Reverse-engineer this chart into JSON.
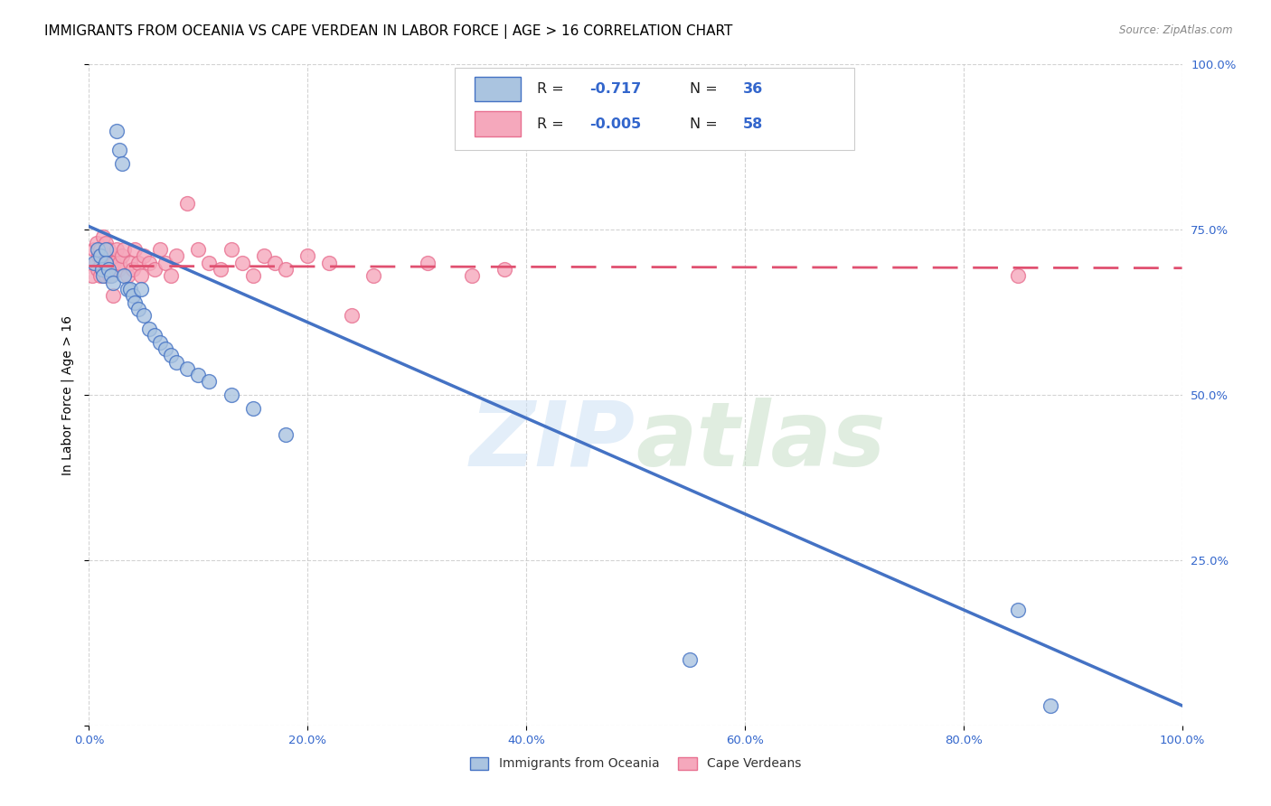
{
  "title": "IMMIGRANTS FROM OCEANIA VS CAPE VERDEAN IN LABOR FORCE | AGE > 16 CORRELATION CHART",
  "source": "Source: ZipAtlas.com",
  "ylabel": "In Labor Force | Age > 16",
  "xlim": [
    0.0,
    1.0
  ],
  "ylim": [
    0.0,
    1.0
  ],
  "xticks": [
    0.0,
    0.2,
    0.4,
    0.6,
    0.8,
    1.0
  ],
  "yticks": [
    0.0,
    0.25,
    0.5,
    0.75,
    1.0
  ],
  "xticklabels": [
    "0.0%",
    "20.0%",
    "40.0%",
    "60.0%",
    "80.0%",
    "100.0%"
  ],
  "yticklabels_right": [
    "",
    "25.0%",
    "50.0%",
    "75.0%",
    "100.0%"
  ],
  "scatter_color_oceania": "#aac4e0",
  "scatter_color_cape": "#f5a8bc",
  "line_color_oceania": "#4472c4",
  "line_color_cape": "#e05070",
  "background_color": "#ffffff",
  "grid_color": "#c8c8c8",
  "oceania_x": [
    0.005,
    0.008,
    0.01,
    0.012,
    0.013,
    0.015,
    0.015,
    0.018,
    0.02,
    0.022,
    0.025,
    0.028,
    0.03,
    0.032,
    0.035,
    0.038,
    0.04,
    0.042,
    0.045,
    0.048,
    0.05,
    0.055,
    0.06,
    0.065,
    0.07,
    0.075,
    0.08,
    0.09,
    0.1,
    0.11,
    0.13,
    0.15,
    0.18,
    0.55,
    0.85,
    0.88
  ],
  "oceania_y": [
    0.7,
    0.72,
    0.71,
    0.69,
    0.68,
    0.72,
    0.7,
    0.69,
    0.68,
    0.67,
    0.9,
    0.87,
    0.85,
    0.68,
    0.66,
    0.66,
    0.65,
    0.64,
    0.63,
    0.66,
    0.62,
    0.6,
    0.59,
    0.58,
    0.57,
    0.56,
    0.55,
    0.54,
    0.53,
    0.52,
    0.5,
    0.48,
    0.44,
    0.1,
    0.175,
    0.03
  ],
  "cape_x": [
    0.003,
    0.005,
    0.006,
    0.007,
    0.008,
    0.009,
    0.01,
    0.01,
    0.011,
    0.012,
    0.013,
    0.014,
    0.015,
    0.015,
    0.016,
    0.017,
    0.018,
    0.019,
    0.02,
    0.02,
    0.022,
    0.023,
    0.025,
    0.027,
    0.028,
    0.03,
    0.032,
    0.035,
    0.038,
    0.04,
    0.042,
    0.045,
    0.048,
    0.05,
    0.055,
    0.06,
    0.065,
    0.07,
    0.075,
    0.08,
    0.09,
    0.1,
    0.11,
    0.12,
    0.13,
    0.14,
    0.15,
    0.16,
    0.17,
    0.18,
    0.2,
    0.22,
    0.24,
    0.26,
    0.31,
    0.35,
    0.38,
    0.85
  ],
  "cape_y": [
    0.68,
    0.72,
    0.7,
    0.73,
    0.69,
    0.71,
    0.72,
    0.68,
    0.7,
    0.69,
    0.74,
    0.7,
    0.73,
    0.68,
    0.69,
    0.71,
    0.72,
    0.68,
    0.7,
    0.69,
    0.65,
    0.7,
    0.72,
    0.69,
    0.7,
    0.71,
    0.72,
    0.68,
    0.7,
    0.69,
    0.72,
    0.7,
    0.68,
    0.71,
    0.7,
    0.69,
    0.72,
    0.7,
    0.68,
    0.71,
    0.79,
    0.72,
    0.7,
    0.69,
    0.72,
    0.7,
    0.68,
    0.71,
    0.7,
    0.69,
    0.71,
    0.7,
    0.62,
    0.68,
    0.7,
    0.68,
    0.69,
    0.68
  ],
  "title_fontsize": 11,
  "axis_label_fontsize": 10,
  "tick_fontsize": 9.5
}
